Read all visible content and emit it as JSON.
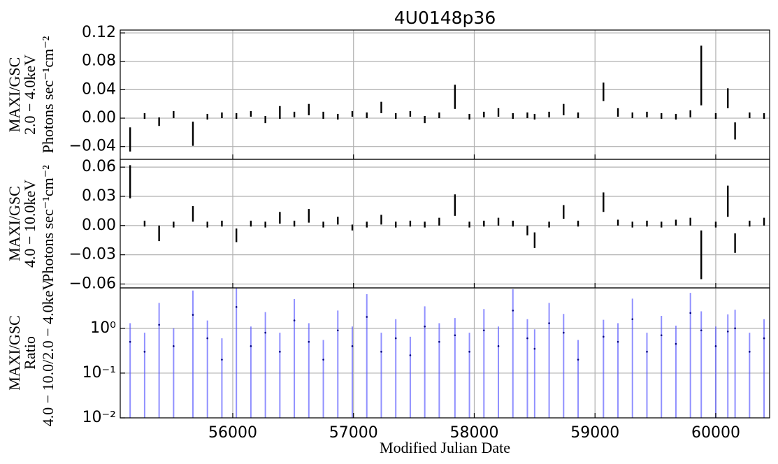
{
  "chart_data": [
    {
      "type": "errorbar",
      "title": "4U0148p36",
      "ylabel": [
        "MAXI/GSC",
        "2.0 − 4.0keV",
        "Photons sec⁻¹cm⁻²"
      ],
      "color": "#000000",
      "grid": true,
      "xlim": [
        55068,
        60446
      ],
      "xticks": [
        56000,
        57000,
        58000,
        59000,
        60000
      ],
      "ylim": [
        -0.058,
        0.124
      ],
      "yticks": [
        {
          "value": -0.04,
          "label": "−0.04"
        },
        {
          "value": 0,
          "label": "0.00"
        },
        {
          "value": 0.04,
          "label": "0.04"
        },
        {
          "value": 0.08,
          "label": "0.08"
        },
        {
          "value": 0.12,
          "label": "0.12"
        }
      ],
      "x": [
        55150,
        55270,
        55390,
        55510,
        55670,
        55790,
        55910,
        56030,
        56150,
        56270,
        56390,
        56510,
        56630,
        56750,
        56870,
        56990,
        57110,
        57230,
        57350,
        57470,
        57590,
        57710,
        57840,
        57960,
        58080,
        58200,
        58320,
        58440,
        58500,
        58620,
        58740,
        58860,
        59070,
        59190,
        59310,
        59430,
        59550,
        59670,
        59790,
        59880,
        60000,
        60100,
        60160,
        60280,
        60400
      ],
      "values": [
        -0.03,
        0.003,
        -0.005,
        0.005,
        -0.022,
        0.002,
        0.004,
        0.003,
        0.006,
        -0.002,
        0.008,
        0.005,
        0.012,
        0.004,
        0.002,
        0.006,
        0.004,
        0.015,
        0.003,
        0.006,
        -0.002,
        0.004,
        0.03,
        0.002,
        0.005,
        0.008,
        0.003,
        0.004,
        0.002,
        0.005,
        0.012,
        0.004,
        0.037,
        0.008,
        0.004,
        0.005,
        0.003,
        0.002,
        0.006,
        0.06,
        0.003,
        0.028,
        -0.018,
        0.004,
        0.003
      ],
      "errors": [
        0.017,
        0.004,
        0.006,
        0.005,
        0.017,
        0.004,
        0.004,
        0.004,
        0.004,
        0.005,
        0.009,
        0.004,
        0.008,
        0.005,
        0.004,
        0.004,
        0.004,
        0.008,
        0.004,
        0.004,
        0.005,
        0.004,
        0.017,
        0.004,
        0.004,
        0.006,
        0.004,
        0.004,
        0.004,
        0.004,
        0.008,
        0.004,
        0.013,
        0.006,
        0.004,
        0.004,
        0.004,
        0.004,
        0.005,
        0.042,
        0.004,
        0.014,
        0.012,
        0.004,
        0.004
      ]
    },
    {
      "type": "errorbar",
      "ylabel": [
        "MAXI/GSC",
        "4.0 − 10.0keV",
        "Photons sec⁻¹cm⁻²"
      ],
      "color": "#000000",
      "grid": true,
      "xlim": [
        55068,
        60446
      ],
      "xticks": [
        56000,
        57000,
        58000,
        59000,
        60000
      ],
      "ylim": [
        -0.064,
        0.068
      ],
      "yticks": [
        {
          "value": -0.06,
          "label": "−0.06"
        },
        {
          "value": -0.03,
          "label": "−0.03"
        },
        {
          "value": 0,
          "label": "0.00"
        },
        {
          "value": 0.03,
          "label": "0.03"
        },
        {
          "value": 0.06,
          "label": "0.06"
        }
      ],
      "x": [
        55150,
        55270,
        55390,
        55510,
        55670,
        55790,
        55910,
        56030,
        56150,
        56270,
        56390,
        56510,
        56630,
        56750,
        56870,
        56990,
        57110,
        57230,
        57350,
        57470,
        57590,
        57710,
        57840,
        57960,
        58080,
        58200,
        58320,
        58440,
        58500,
        58620,
        58740,
        58860,
        59070,
        59190,
        59310,
        59430,
        59550,
        59670,
        59790,
        59880,
        60000,
        60100,
        60160,
        60280,
        60400
      ],
      "values": [
        0.045,
        0.002,
        -0.008,
        0.001,
        0.012,
        0.001,
        0.002,
        -0.01,
        0.002,
        0.001,
        0.008,
        0.002,
        0.01,
        0.001,
        0.005,
        -0.002,
        0.001,
        0.006,
        0.001,
        0.002,
        0.001,
        0.004,
        0.021,
        0.001,
        0.002,
        0.004,
        0.002,
        -0.005,
        -0.015,
        0.001,
        0.014,
        0.002,
        0.024,
        0.003,
        0.001,
        0.002,
        0.001,
        0.003,
        0.004,
        -0.03,
        0.001,
        0.025,
        -0.018,
        0.002,
        0.004
      ],
      "errors": [
        0.017,
        0.003,
        0.008,
        0.003,
        0.008,
        0.003,
        0.003,
        0.007,
        0.003,
        0.003,
        0.006,
        0.003,
        0.007,
        0.003,
        0.004,
        0.003,
        0.003,
        0.005,
        0.003,
        0.003,
        0.003,
        0.004,
        0.011,
        0.003,
        0.003,
        0.004,
        0.003,
        0.005,
        0.008,
        0.003,
        0.007,
        0.003,
        0.01,
        0.003,
        0.003,
        0.003,
        0.003,
        0.003,
        0.004,
        0.025,
        0.003,
        0.016,
        0.01,
        0.003,
        0.004
      ]
    },
    {
      "type": "errorbar",
      "yscale": "log",
      "ylabel": [
        "MAXI/GSC",
        "Ratio",
        "4.0 − 10.0/2.0 − 4.0keV"
      ],
      "xlabel": "Modified Julian Date",
      "color": "#5555ff",
      "grid": true,
      "xlim": [
        55068,
        60446
      ],
      "xticks": [
        56000,
        57000,
        58000,
        59000,
        60000
      ],
      "ylim": [
        0.01,
        8
      ],
      "yticks": [
        {
          "value": 0.01,
          "label": "10⁻²"
        },
        {
          "value": 0.1,
          "label": "10⁻¹"
        },
        {
          "value": 1,
          "label": "10⁰"
        }
      ],
      "x": [
        55150,
        55270,
        55390,
        55510,
        55670,
        55790,
        55910,
        56030,
        56150,
        56270,
        56390,
        56510,
        56630,
        56750,
        56870,
        56990,
        57110,
        57230,
        57350,
        57470,
        57590,
        57710,
        57840,
        57960,
        58080,
        58200,
        58320,
        58440,
        58500,
        58620,
        58740,
        58860,
        59070,
        59190,
        59310,
        59430,
        59550,
        59670,
        59790,
        59880,
        60000,
        60100,
        60160,
        60280,
        60400
      ],
      "values": [
        0.5,
        0.3,
        1.2,
        0.4,
        2.0,
        0.6,
        0.2,
        3.0,
        0.4,
        0.8,
        0.3,
        1.5,
        0.5,
        0.2,
        0.9,
        0.4,
        1.8,
        0.3,
        0.6,
        0.25,
        1.1,
        0.5,
        0.7,
        0.3,
        0.9,
        0.4,
        2.5,
        0.6,
        0.35,
        1.3,
        0.8,
        0.2,
        0.65,
        0.5,
        1.6,
        0.3,
        0.7,
        0.45,
        2.2,
        0.9,
        0.4,
        0.85,
        1.0,
        0.3,
        0.6
      ],
      "errors": [
        0.8,
        0.5,
        2.5,
        0.6,
        5,
        0.9,
        0.4,
        6,
        0.7,
        1.5,
        0.5,
        3,
        0.8,
        0.35,
        1.6,
        0.7,
        4,
        0.5,
        1.0,
        0.4,
        2,
        0.8,
        1.0,
        0.5,
        1.8,
        0.7,
        5,
        1.0,
        0.6,
        2.4,
        1.3,
        0.35,
        0.9,
        0.8,
        3,
        0.5,
        1.2,
        0.7,
        4,
        1.5,
        0.7,
        1.2,
        1.6,
        0.5,
        1.0
      ]
    }
  ]
}
